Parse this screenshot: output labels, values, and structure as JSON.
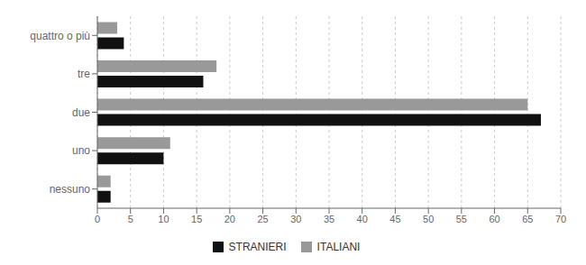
{
  "chart_data": {
    "type": "bar",
    "orientation": "horizontal",
    "categories": [
      "nessuno",
      "uno",
      "due",
      "tre",
      "quattro o più"
    ],
    "series": [
      {
        "name": "STRANIERI",
        "color": "#111111",
        "values": [
          2,
          10,
          67,
          16,
          4
        ]
      },
      {
        "name": "ITALIANI",
        "color": "#999999",
        "values": [
          2,
          11,
          65,
          18,
          3
        ]
      }
    ],
    "xlim": [
      0,
      70
    ],
    "xticks": [
      0,
      5,
      10,
      15,
      20,
      25,
      30,
      35,
      40,
      45,
      50,
      55,
      60,
      65,
      70
    ],
    "grid": true,
    "legend": "bottom"
  }
}
